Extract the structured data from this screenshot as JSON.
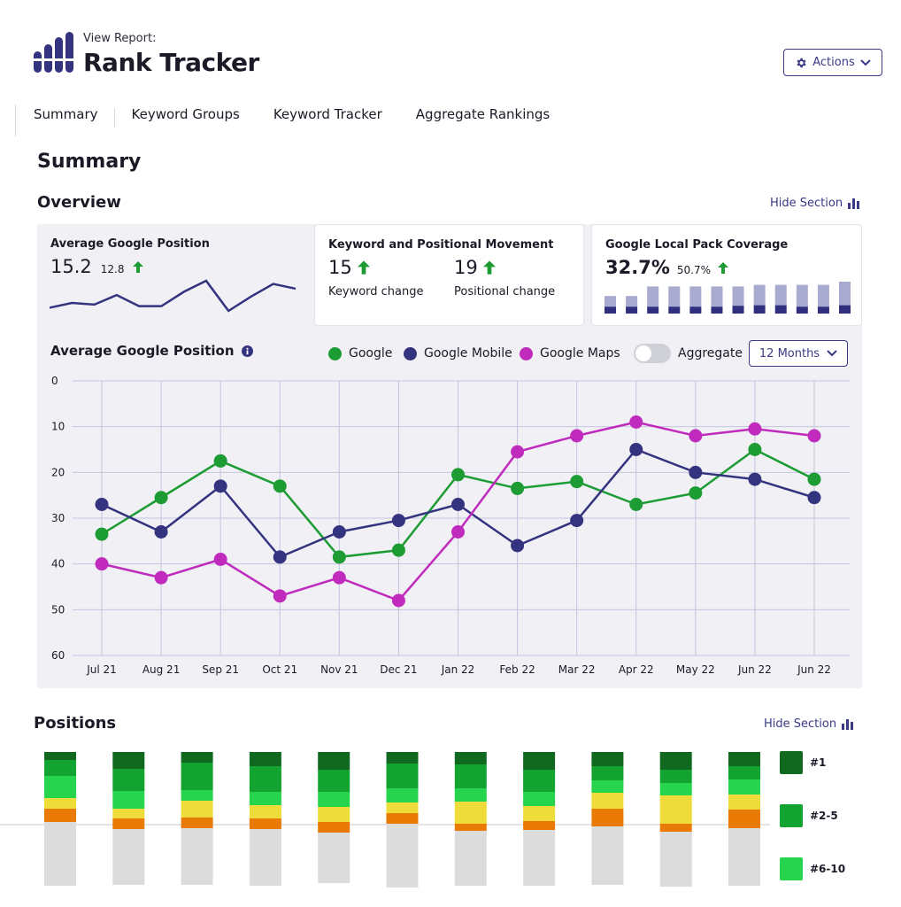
{
  "header": {
    "view_report_label": "View Report:",
    "title": "Rank Tracker",
    "actions_label": "Actions"
  },
  "tabs": [
    {
      "label": "Summary"
    },
    {
      "label": "Keyword Groups"
    },
    {
      "label": "Keyword Tracker"
    },
    {
      "label": "Aggregate Rankings"
    }
  ],
  "summary_heading": "Summary",
  "overview": {
    "heading": "Overview",
    "hide_section_label": "Hide Section",
    "cards": {
      "avg_position": {
        "title": "Average Google Position",
        "value": "15.2",
        "prev": "12.8",
        "sparkline": [
          26,
          23,
          24,
          18,
          25,
          25,
          16,
          9,
          28,
          19,
          11,
          14
        ]
      },
      "movement": {
        "title": "Keyword and Positional Movement",
        "keyword_value": "15",
        "keyword_label": "Keyword change",
        "positional_value": "19",
        "positional_label": "Positional change"
      },
      "local_pack": {
        "title": "Google Local Pack Coverage",
        "value": "32.7%",
        "prev": "50.7%",
        "bars": [
          {
            "total": 0.55,
            "covered": 0.22
          },
          {
            "total": 0.55,
            "covered": 0.22
          },
          {
            "total": 0.85,
            "covered": 0.22
          },
          {
            "total": 0.85,
            "covered": 0.22
          },
          {
            "total": 0.85,
            "covered": 0.22
          },
          {
            "total": 0.85,
            "covered": 0.22
          },
          {
            "total": 0.85,
            "covered": 0.3
          },
          {
            "total": 0.9,
            "covered": 0.35
          },
          {
            "total": 0.9,
            "covered": 0.35
          },
          {
            "total": 0.9,
            "covered": 0.22
          },
          {
            "total": 0.9,
            "covered": 0.22
          },
          {
            "total": 1.0,
            "covered": 0.35
          }
        ]
      }
    }
  },
  "chart_controls": {
    "title": "Average Google Position",
    "aggregate_label": "Aggregate",
    "range_label": "12 Months"
  },
  "colors": {
    "google": "#1c9c33",
    "google_mobile": "#33337f",
    "google_maps": "#c02bbd",
    "accent": "#3a3a86",
    "grid": "#c5c5df"
  },
  "chart_data": {
    "type": "line",
    "title": "Average Google Position",
    "categories": [
      "Jul 21",
      "Aug 21",
      "Sep 21",
      "Oct 21",
      "Nov 21",
      "Dec 21",
      "Jan 22",
      "Feb 22",
      "Mar 22",
      "Apr 22",
      "May 22",
      "Jun 22",
      "Jun 22"
    ],
    "ylim": [
      0,
      60
    ],
    "y_inverted": true,
    "yticks": [
      "0",
      "10",
      "20",
      "30",
      "40",
      "50",
      "60"
    ],
    "grid": true,
    "legend": "top",
    "series": [
      {
        "name": "Google",
        "color": "#1c9c33",
        "values": [
          33.5,
          25.5,
          17.5,
          23,
          38.5,
          37,
          20.5,
          23.5,
          22,
          27,
          24.5,
          15,
          21.5
        ]
      },
      {
        "name": "Google Mobile",
        "color": "#33337f",
        "values": [
          27,
          33,
          23,
          38.5,
          33,
          30.5,
          27,
          36,
          30.5,
          15,
          20,
          21.5,
          25.5
        ]
      },
      {
        "name": "Google Maps",
        "color": "#c02bbd",
        "values": [
          40,
          43,
          39,
          47,
          43,
          48,
          33,
          15.5,
          12,
          9,
          12,
          10.5,
          12
        ]
      }
    ]
  },
  "positions": {
    "heading": "Positions",
    "hide_section_label": "Hide Section",
    "legend": [
      {
        "label": "#1",
        "color": "#10691f"
      },
      {
        "label": "#2-5",
        "color": "#13a331"
      },
      {
        "label": "#6-10",
        "color": "#27d44e"
      }
    ],
    "segment_colors": [
      "#10691f",
      "#13a331",
      "#27d44e",
      "#eedc3a",
      "#e87a05",
      "#dcdcdc"
    ],
    "stacks": [
      [
        9,
        18,
        25,
        12,
        15,
        72
      ],
      [
        19,
        25,
        20,
        11,
        12,
        63
      ],
      [
        12,
        31,
        12,
        19,
        12,
        64
      ],
      [
        16,
        29,
        15,
        15,
        12,
        64
      ],
      [
        20,
        25,
        17,
        17,
        12,
        57
      ],
      [
        13,
        28,
        16,
        12,
        12,
        72
      ],
      [
        14,
        27,
        15,
        25,
        8,
        62
      ],
      [
        20,
        25,
        16,
        17,
        10,
        63
      ],
      [
        16,
        16,
        14,
        18,
        20,
        66
      ],
      [
        20,
        15,
        14,
        32,
        9,
        62
      ],
      [
        16,
        15,
        17,
        17,
        21,
        65
      ]
    ]
  }
}
